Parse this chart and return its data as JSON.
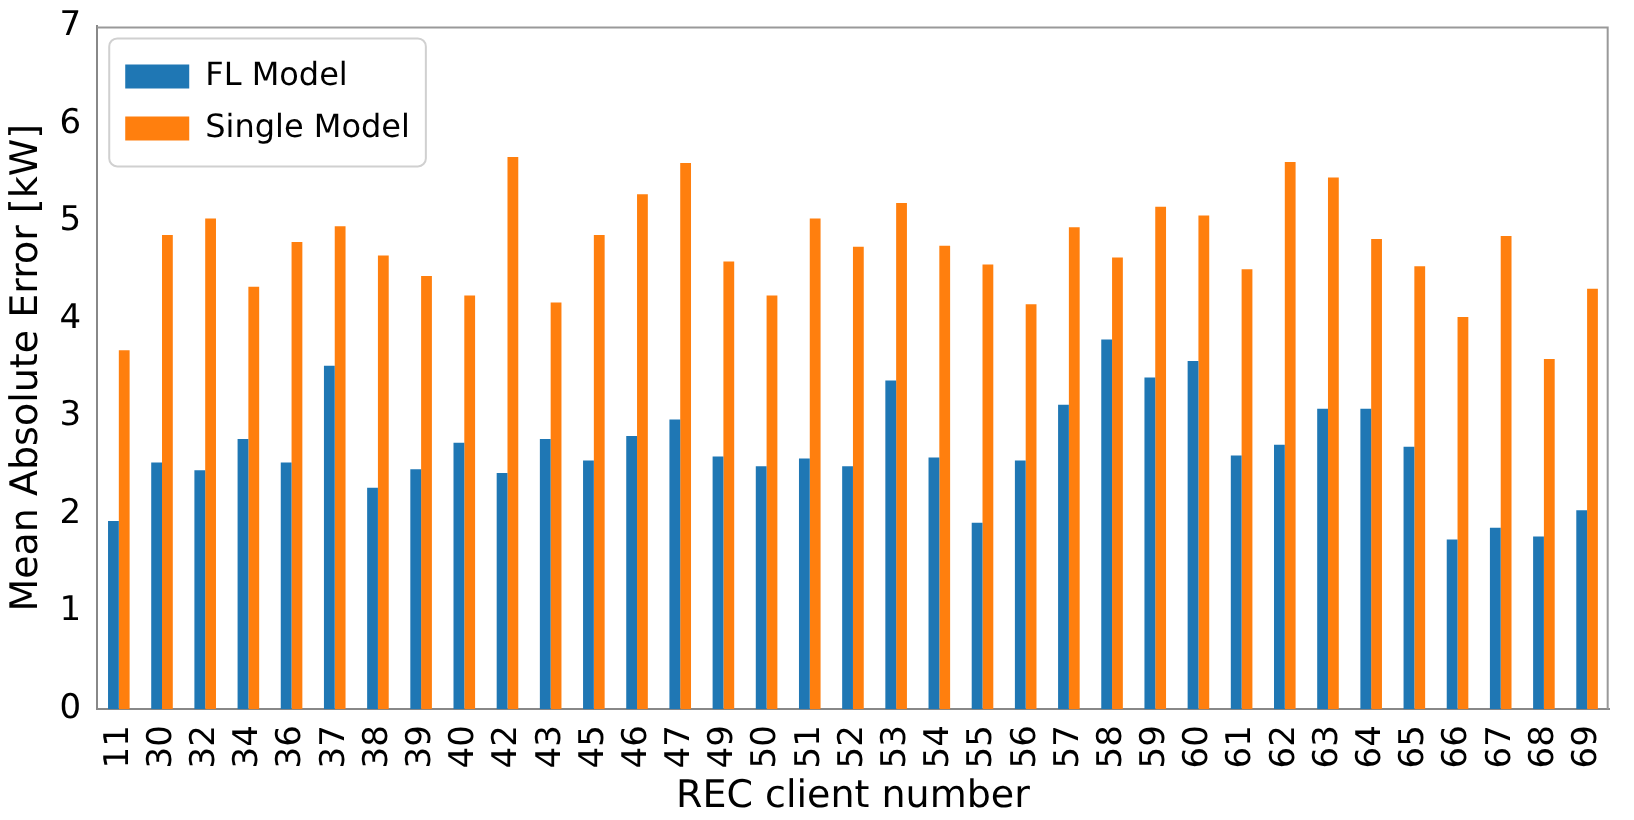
{
  "chart_data": {
    "type": "bar",
    "xlabel": "REC client number",
    "ylabel": "Mean Absolute Error [kW]",
    "categories": [
      "11",
      "30",
      "32",
      "34",
      "36",
      "37",
      "38",
      "39",
      "40",
      "42",
      "43",
      "45",
      "46",
      "47",
      "49",
      "50",
      "51",
      "52",
      "53",
      "54",
      "55",
      "56",
      "57",
      "58",
      "59",
      "60",
      "61",
      "62",
      "63",
      "64",
      "65",
      "66",
      "67",
      "68",
      "69"
    ],
    "series": [
      {
        "name": "FL Model",
        "color": "#1f77b4",
        "values": [
          1.93,
          2.53,
          2.45,
          2.77,
          2.53,
          3.52,
          2.27,
          2.46,
          2.73,
          2.42,
          2.77,
          2.55,
          2.8,
          2.97,
          2.59,
          2.49,
          2.57,
          2.49,
          3.37,
          2.58,
          1.91,
          2.55,
          3.12,
          3.79,
          3.4,
          3.57,
          2.6,
          2.71,
          3.08,
          3.08,
          2.69,
          1.74,
          1.86,
          1.77,
          2.04
        ]
      },
      {
        "name": "Single Model",
        "color": "#ff7f0e",
        "values": [
          3.68,
          4.86,
          5.03,
          4.33,
          4.79,
          4.95,
          4.65,
          4.44,
          4.24,
          5.66,
          4.17,
          4.86,
          5.28,
          5.6,
          4.59,
          4.24,
          5.03,
          4.74,
          5.19,
          4.75,
          4.56,
          4.15,
          4.94,
          4.63,
          5.15,
          5.06,
          4.51,
          5.61,
          5.45,
          4.82,
          4.54,
          4.02,
          4.85,
          3.59,
          4.31
        ]
      }
    ],
    "ylim": [
      0,
      7
    ],
    "yticks": [
      0,
      1,
      2,
      3,
      4,
      5,
      6,
      7
    ],
    "grid": false,
    "legend": "top left"
  }
}
